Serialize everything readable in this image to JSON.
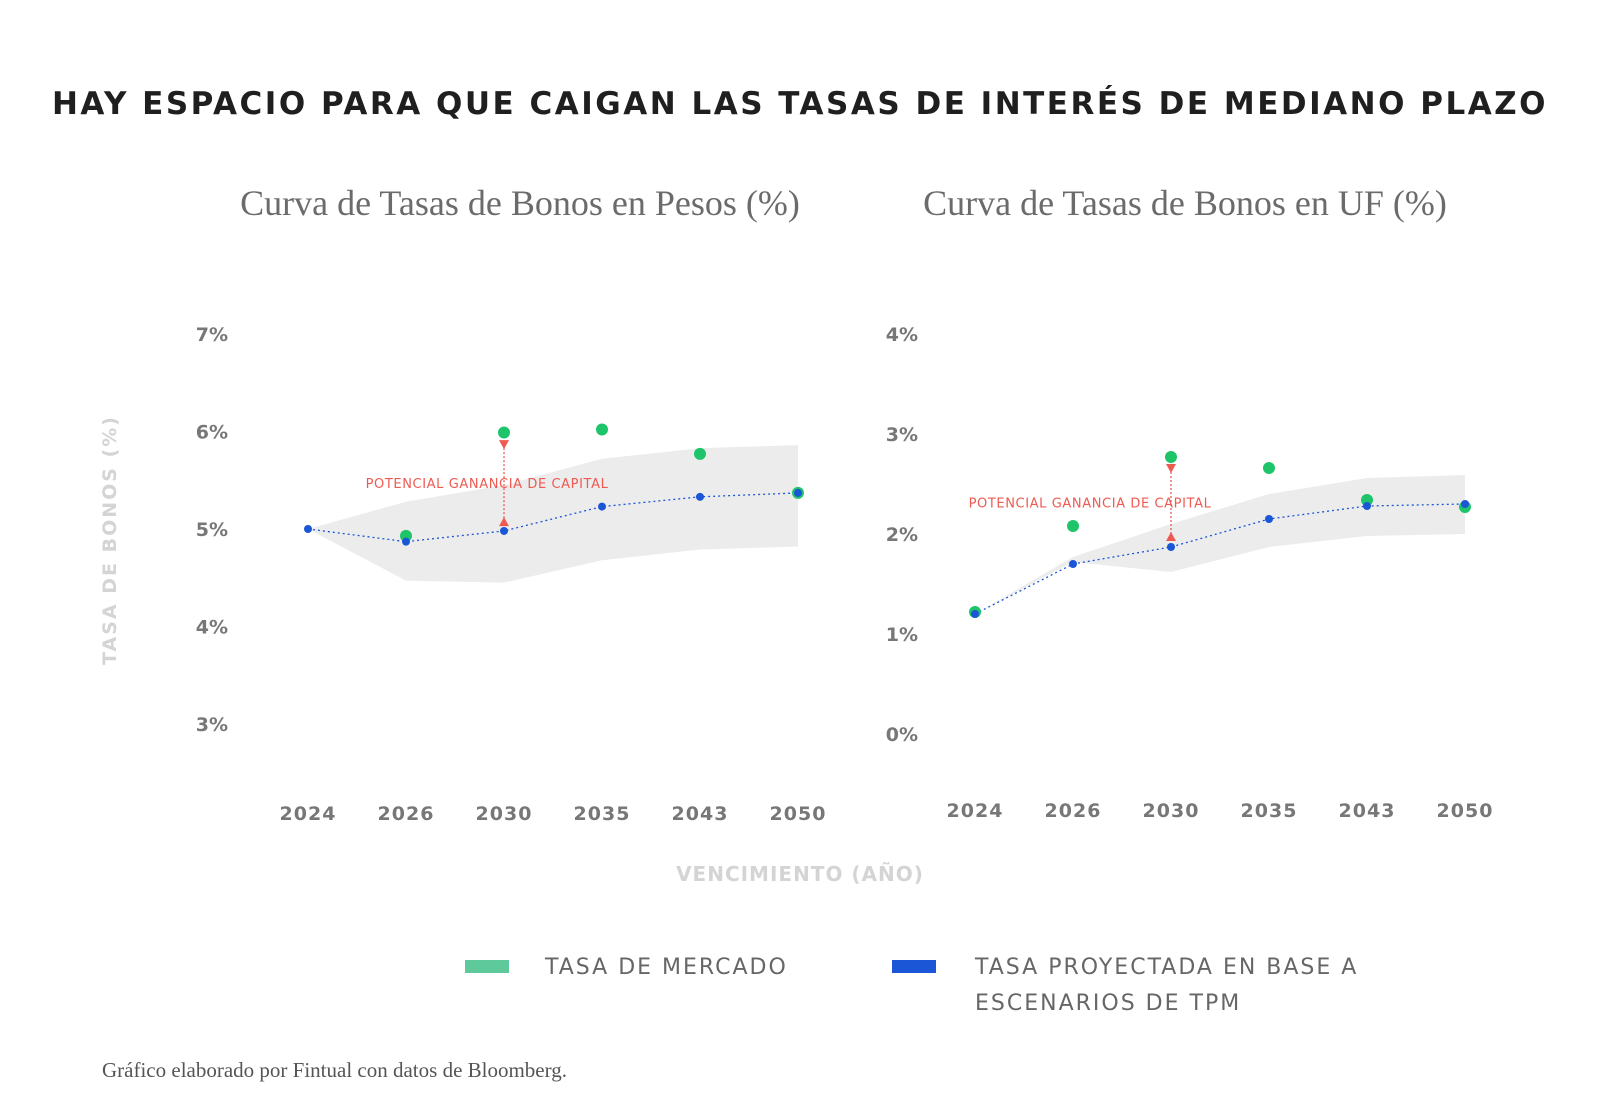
{
  "title": "HAY ESPACIO PARA QUE CAIGAN LAS TASAS DE INTERÉS DE MEDIANO PLAZO",
  "ylabel": "TASA DE BONOS (%)",
  "xlabel": "VENCIMIENTO (AÑO)",
  "annotation": "POTENCIAL GANANCIA DE CAPITAL",
  "legend": [
    {
      "label": "TASA DE MERCADO",
      "color": "#5ec99a"
    },
    {
      "label": "TASA PROYECTADA EN BASE A ESCENARIOS DE TPM",
      "color": "#1a56d6"
    }
  ],
  "source": "Gráfico elaborado por Fintual con datos de  Bloomberg.",
  "colors": {
    "market_dot": "#1ec46a",
    "projected_dot": "#1a56d6",
    "band": "#ececec",
    "annotation": "#ee5a52",
    "tick": "#777777"
  },
  "chart_data": [
    {
      "type": "scatter",
      "title": "Curva de Tasas de Bonos en Pesos (%)",
      "xlabel": "VENCIMIENTO (AÑO)",
      "ylabel": "TASA DE BONOS (%)",
      "categories": [
        "2024",
        "2026",
        "2030",
        "2035",
        "2043",
        "2050"
      ],
      "ylim": [
        3,
        7
      ],
      "yticks": [
        "3%",
        "4%",
        "5%",
        "6%",
        "7%"
      ],
      "series": [
        {
          "name": "TASA DE MERCADO",
          "values": [
            null,
            4.93,
            5.99,
            6.02,
            5.77,
            5.37
          ]
        },
        {
          "name": "TASA PROYECTADA EN BASE A ESCENARIOS DE TPM",
          "values": [
            5.0,
            4.87,
            4.98,
            5.23,
            5.33,
            5.37
          ]
        }
      ],
      "band_upper": [
        5.0,
        5.28,
        5.45,
        5.72,
        5.83,
        5.86
      ],
      "band_lower": [
        5.0,
        4.47,
        4.45,
        4.68,
        4.79,
        4.82
      ],
      "annotation": {
        "text": "POTENCIAL GANANCIA DE CAPITAL",
        "category": "2030",
        "from": 5.87,
        "to": 5.07
      }
    },
    {
      "type": "scatter",
      "title": "Curva de Tasas de Bonos en UF (%)",
      "xlabel": "VENCIMIENTO (AÑO)",
      "ylabel": "TASA DE BONOS (%)",
      "categories": [
        "2024",
        "2026",
        "2030",
        "2035",
        "2043",
        "2050"
      ],
      "ylim": [
        0,
        4
      ],
      "yticks": [
        "0%",
        "1%",
        "2%",
        "3%",
        "4%"
      ],
      "series": [
        {
          "name": "TASA DE MERCADO",
          "values": [
            1.22,
            2.08,
            2.77,
            2.66,
            2.34,
            2.27
          ]
        },
        {
          "name": "TASA PROYECTADA EN BASE A ESCENARIOS DE TPM",
          "values": [
            1.2,
            1.7,
            1.87,
            2.15,
            2.28,
            2.3
          ]
        }
      ],
      "band_upper": [
        1.2,
        1.77,
        2.1,
        2.4,
        2.56,
        2.59
      ],
      "band_lower": [
        1.2,
        1.72,
        1.62,
        1.87,
        1.98,
        2.0
      ],
      "annotation": {
        "text": "POTENCIAL GANANCIA DE CAPITAL",
        "category": "2030",
        "from": 2.66,
        "to": 1.97
      }
    }
  ]
}
